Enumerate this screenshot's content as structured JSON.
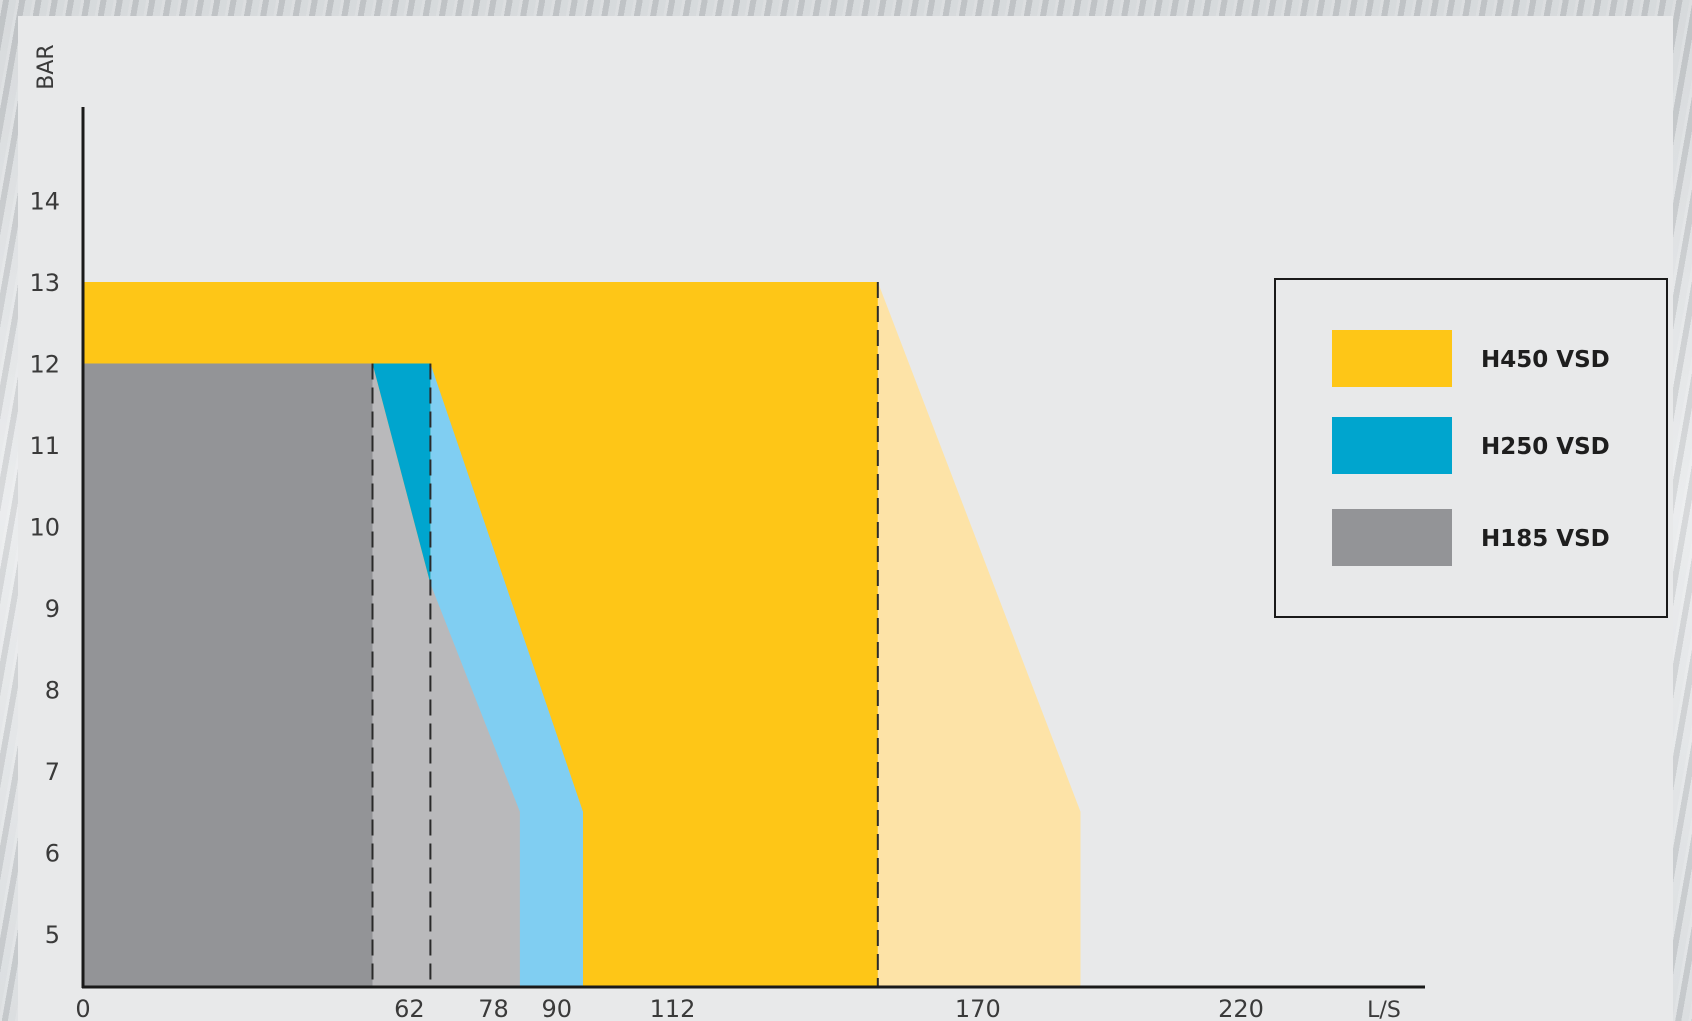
{
  "chart_data": {
    "type": "area",
    "title": "",
    "xlabel": "L/S",
    "ylabel": "BAR",
    "xlim": [
      0,
      220
    ],
    "ylim": [
      4.35,
      15.5
    ],
    "x_ticks": [
      {
        "value": 0,
        "label": "0"
      },
      {
        "value": 62,
        "label": "62"
      },
      {
        "value": 78,
        "label": "78"
      },
      {
        "value": 90,
        "label": "90"
      },
      {
        "value": 112,
        "label": "112"
      },
      {
        "value": 170,
        "label": "170"
      },
      {
        "value": 220,
        "label": "220"
      }
    ],
    "y_ticks": [
      {
        "value": 5,
        "label": "5"
      },
      {
        "value": 6,
        "label": "6"
      },
      {
        "value": 7,
        "label": "7"
      },
      {
        "value": 8,
        "label": "8"
      },
      {
        "value": 9,
        "label": "9"
      },
      {
        "value": 10,
        "label": "10"
      },
      {
        "value": 11,
        "label": "11"
      },
      {
        "value": 12,
        "label": "12"
      },
      {
        "value": 13,
        "label": "13"
      },
      {
        "value": 14,
        "label": "14"
      }
    ],
    "grid": false,
    "legend_position": "right",
    "dashed_markers": [
      {
        "x": 55,
        "y_top": 12
      },
      {
        "x": 66,
        "y_top": 12
      },
      {
        "x": 151,
        "y_top": 13
      }
    ],
    "areas": [
      {
        "id": "h450-light",
        "color": "#fde3a7",
        "points": [
          [
            151,
            4.35
          ],
          [
            151,
            13
          ],
          [
            189.5,
            6.5
          ],
          [
            189.5,
            4.35
          ]
        ]
      },
      {
        "id": "h450",
        "color": "#fec617",
        "points": [
          [
            0,
            4.35
          ],
          [
            0,
            13
          ],
          [
            151,
            13
          ],
          [
            151,
            4.35
          ]
        ]
      },
      {
        "id": "h250-light",
        "color": "#80cef2",
        "points": [
          [
            66,
            12
          ],
          [
            66,
            4.35
          ],
          [
            95,
            4.35
          ],
          [
            95,
            6.5
          ]
        ]
      },
      {
        "id": "h185-light",
        "color": "#b9b9bb",
        "points": [
          [
            55,
            12
          ],
          [
            55,
            4.35
          ],
          [
            83,
            4.35
          ],
          [
            83,
            6.5
          ],
          [
            66,
            9.3
          ]
        ]
      },
      {
        "id": "h250",
        "color": "#00a5ce",
        "points": [
          [
            55,
            12
          ],
          [
            66,
            12
          ],
          [
            66,
            9.3
          ]
        ]
      },
      {
        "id": "h185",
        "color": "#939497",
        "points": [
          [
            0,
            4.35
          ],
          [
            0,
            12
          ],
          [
            55,
            12
          ],
          [
            55,
            4.35
          ]
        ]
      }
    ],
    "legend": [
      {
        "label": "H450 VSD",
        "color": "#fec617"
      },
      {
        "label": "H250 VSD",
        "color": "#00a5ce"
      },
      {
        "label": "H185 VSD",
        "color": "#939497"
      }
    ]
  }
}
